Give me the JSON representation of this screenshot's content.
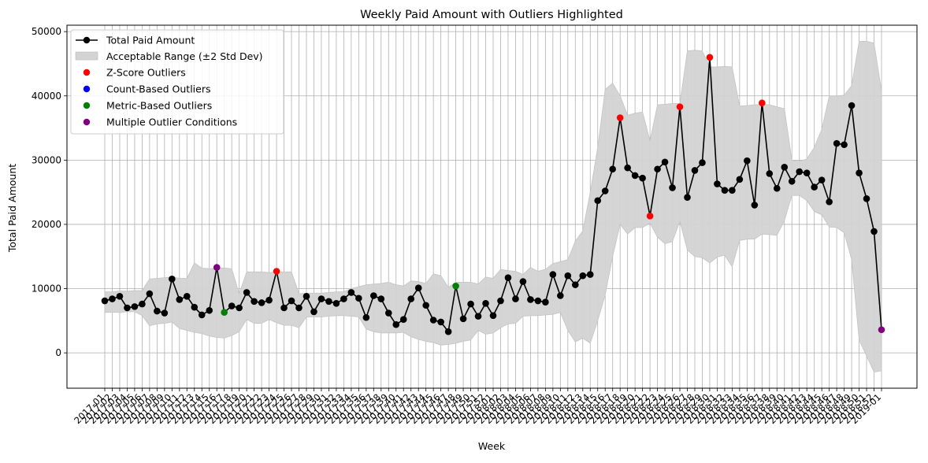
{
  "chart_data": {
    "type": "line",
    "title": "Weekly Paid Amount with Outliers Highlighted",
    "xlabel": "Week",
    "ylabel": "Total Paid Amount",
    "ylim": [
      -5500,
      51000
    ],
    "yticks": [
      0,
      10000,
      20000,
      30000,
      40000,
      50000
    ],
    "grid": true,
    "legend_position": "upper-left",
    "x_tick_labels": [
      "2017-01",
      "2017-02",
      "2017-03",
      "2017-04",
      "2017-05",
      "2017-06",
      "2017-07",
      "2017-08",
      "2017-09",
      "2017-10",
      "2017-11",
      "2017-12",
      "2017-13",
      "2017-14",
      "2017-15",
      "2017-16",
      "2017-17",
      "2017-18",
      "2017-19",
      "2017-20",
      "2017-21",
      "2017-22",
      "2017-23",
      "2017-24",
      "2017-25",
      "2017-26",
      "2017-27",
      "2017-28",
      "2017-29",
      "2017-30",
      "2017-31",
      "2017-32",
      "2017-33",
      "2017-34",
      "2017-35",
      "2017-36",
      "2017-37",
      "2017-38",
      "2017-39",
      "2017-40",
      "2017-41",
      "2017-42",
      "2017-43",
      "2017-44",
      "2017-45",
      "2017-46",
      "2017-47",
      "2017-48",
      "2017-49",
      "2017-50",
      "2017-51",
      "2017-52",
      "2018-01",
      "2018-02",
      "2018-03",
      "2018-04",
      "2018-05",
      "2018-06",
      "2018-07",
      "2018-08",
      "2018-09",
      "2018-10",
      "2018-11",
      "2018-12",
      "2018-13",
      "2018-14",
      "2018-15",
      "2018-16",
      "2018-17",
      "2018-18",
      "2018-19",
      "2018-20",
      "2018-21",
      "2018-22",
      "2018-23",
      "2018-24",
      "2018-25",
      "2018-26",
      "2018-27",
      "2018-28",
      "2018-29",
      "2018-30",
      "2018-31",
      "2018-32",
      "2018-33",
      "2018-34",
      "2018-35",
      "2018-36",
      "2018-37",
      "2018-38",
      "2018-39",
      "2018-40",
      "2018-41",
      "2018-42",
      "2018-43",
      "2018-44",
      "2018-45",
      "2018-46",
      "2018-47",
      "2018-48",
      "2018-49",
      "2018-50",
      "2018-51",
      "2018-52",
      "2019-01"
    ],
    "series": [
      {
        "name": "Total Paid Amount",
        "color": "#000000",
        "values": [
          8100,
          8400,
          8800,
          7000,
          7200,
          7600,
          9200,
          6500,
          6200,
          11500,
          8300,
          8800,
          7100,
          5900,
          6600,
          13300,
          6300,
          7300,
          7000,
          9400,
          8000,
          7800,
          8200,
          12700,
          7000,
          8100,
          7000,
          8800,
          6400,
          8400,
          8000,
          7700,
          8400,
          9400,
          8500,
          5500,
          8900,
          8400,
          6200,
          4400,
          5200,
          8400,
          10100,
          7400,
          5100,
          4800,
          3300,
          10400,
          5300,
          7600,
          5700,
          7700,
          5800,
          8100,
          11700,
          8400,
          11100,
          8300,
          8100,
          7900,
          12200,
          8900,
          12000,
          10600,
          12000,
          12200,
          23700,
          25200,
          28600,
          36600,
          28800,
          27600,
          27200,
          21300,
          28600,
          29700,
          25700,
          38300,
          24200,
          28400,
          29600,
          46000,
          26300,
          25300,
          25300,
          27000,
          29900,
          23000,
          38900,
          27900,
          25600,
          28900,
          26700,
          28200,
          28000,
          25800,
          26900,
          23500,
          32600,
          32400,
          38500,
          28000,
          24000,
          18900,
          3600
        ]
      },
      {
        "name": "Acceptable Range (±2 Std Dev)",
        "color": "#d3d3d3",
        "upper": [
          9500,
          9500,
          9600,
          9600,
          9700,
          9700,
          11500,
          11600,
          11700,
          11800,
          11600,
          11600,
          14000,
          13200,
          13100,
          13200,
          13200,
          13100,
          9200,
          12600,
          12600,
          12600,
          12500,
          12600,
          12600,
          12600,
          9200,
          9300,
          9300,
          9300,
          9400,
          9500,
          9500,
          10000,
          10300,
          10600,
          10700,
          10800,
          11000,
          10600,
          10400,
          11200,
          11100,
          10800,
          12300,
          12000,
          10200,
          11000,
          11000,
          11000,
          10700,
          11800,
          11600,
          13000,
          12800,
          12700,
          12200,
          13300,
          12700,
          13000,
          13900,
          14200,
          14500,
          17400,
          19000,
          25000,
          32000,
          41000,
          42000,
          40000,
          37000,
          37300,
          37500,
          33000,
          38600,
          38700,
          38800,
          38800,
          47000,
          47100,
          47000,
          44500,
          44500,
          44600,
          44500,
          38400,
          38500,
          38600,
          38700,
          38600,
          38300,
          38000,
          30000,
          29800,
          30200,
          32000,
          34800,
          40000,
          40000,
          40100,
          41600,
          48500,
          48500,
          48200,
          40800
        ],
        "lower": [
          6300,
          6300,
          6300,
          6400,
          6400,
          5800,
          4200,
          4500,
          4600,
          4800,
          3800,
          3500,
          3200,
          3000,
          2600,
          2400,
          2300,
          2700,
          3300,
          5200,
          4600,
          4600,
          5200,
          4700,
          4300,
          4300,
          3900,
          5600,
          5600,
          5600,
          5700,
          5800,
          5800,
          5700,
          5600,
          3700,
          3300,
          3100,
          3100,
          3100,
          3200,
          2500,
          2100,
          1800,
          1600,
          1200,
          1300,
          1500,
          1800,
          2000,
          3500,
          2900,
          3100,
          3900,
          4500,
          4600,
          5700,
          5800,
          5800,
          5900,
          6000,
          6300,
          3500,
          1700,
          2300,
          1500,
          5000,
          9000,
          15000,
          20000,
          18500,
          19500,
          19500,
          20200,
          18000,
          17000,
          17300,
          20500,
          16000,
          15000,
          14800,
          14000,
          14900,
          15200,
          13400,
          17500,
          17700,
          17700,
          18500,
          18400,
          18300,
          20600,
          24500,
          24500,
          23700,
          22000,
          21500,
          19600,
          19500,
          18700,
          14500,
          2000,
          -500,
          -3000,
          -2800
        ]
      },
      {
        "name": "Z-Score Outliers",
        "color": "#ff0000",
        "indices": [
          23,
          69,
          73,
          77,
          81,
          88
        ]
      },
      {
        "name": "Count-Based Outliers",
        "color": "#0000ff",
        "indices": []
      },
      {
        "name": "Metric-Based Outliers",
        "color": "#008000",
        "indices": [
          16,
          47
        ]
      },
      {
        "name": "Multiple Outlier Conditions",
        "color": "#800080",
        "indices": [
          15,
          104
        ]
      }
    ]
  }
}
